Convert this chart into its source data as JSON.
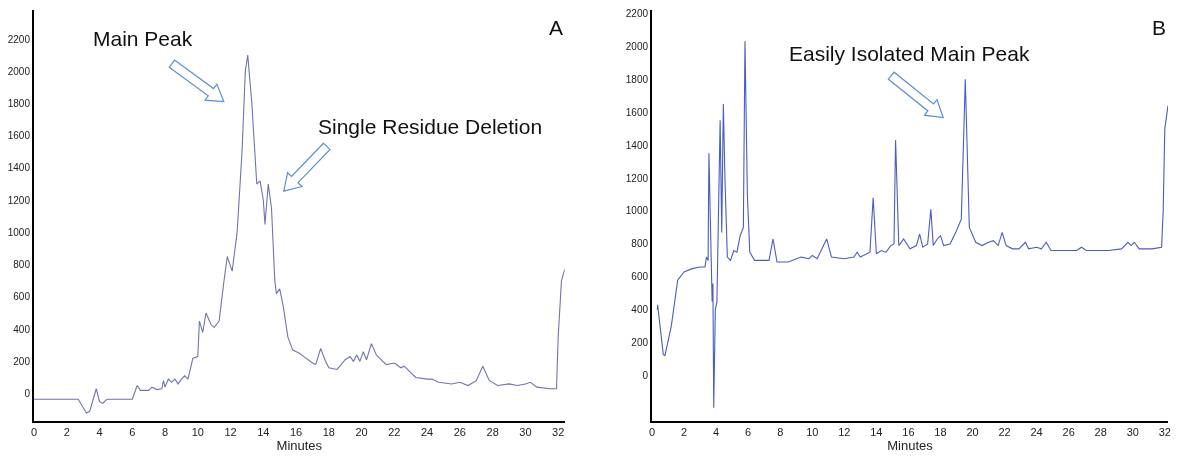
{
  "chart_data": [
    {
      "type": "line",
      "xlabel": "Minutes",
      "xlim": [
        0,
        32.4
      ],
      "ylim": [
        -170,
        2380
      ],
      "xticks": [
        0,
        2,
        4,
        6,
        8,
        10,
        12,
        14,
        16,
        18,
        20,
        22,
        24,
        26,
        28,
        30,
        32
      ],
      "yticks": [
        0,
        200,
        400,
        600,
        800,
        1000,
        1200,
        1400,
        1600,
        1800,
        2000,
        2200
      ],
      "grid": false,
      "marker": "none",
      "line_style": "solid",
      "annotations": [
        "A",
        "Main Peak",
        "Single Residue Deletion"
      ],
      "x": [
        0,
        2.7,
        3.2,
        3.4,
        3.8,
        4.0,
        4.2,
        4.4,
        4.5,
        6.0,
        6.3,
        6.5,
        7.0,
        7.2,
        7.5,
        7.8,
        7.9,
        8.0,
        8.2,
        8.4,
        8.6,
        8.8,
        9.0,
        9.2,
        9.4,
        9.7,
        10.0,
        10.1,
        10.3,
        10.5,
        10.8,
        11.0,
        11.3,
        11.6,
        11.8,
        12.1,
        12.4,
        12.7,
        12.9,
        13.05,
        13.3,
        13.6,
        13.8,
        14.0,
        14.1,
        14.3,
        14.5,
        14.7,
        14.8,
        15.0,
        15.2,
        15.5,
        15.8,
        16.2,
        16.6,
        17.0,
        17.2,
        17.5,
        17.8,
        18.0,
        18.5,
        19.0,
        19.3,
        19.5,
        19.7,
        19.9,
        20.1,
        20.3,
        20.6,
        20.9,
        21.5,
        22.0,
        22.4,
        22.6,
        23.3,
        24.0,
        24.3,
        24.7,
        25.5,
        26.0,
        26.5,
        27.0,
        27.4,
        27.8,
        28.3,
        29.0,
        29.5,
        30.0,
        30.3,
        30.7,
        31.5,
        31.9,
        32.0,
        32.2,
        32.4
      ],
      "series": [
        {
          "color": "#7074b0",
          "values": [
            -35,
            -35,
            -120,
            -110,
            30,
            -50,
            -60,
            -40,
            -35,
            -35,
            50,
            20,
            20,
            40,
            25,
            30,
            80,
            40,
            90,
            70,
            90,
            60,
            90,
            110,
            90,
            220,
            230,
            450,
            380,
            500,
            430,
            410,
            450,
            700,
            850,
            760,
            1000,
            1500,
            2000,
            2100,
            1800,
            1300,
            1320,
            1200,
            1050,
            1300,
            1150,
            700,
            620,
            650,
            550,
            350,
            270,
            250,
            220,
            190,
            180,
            280,
            200,
            160,
            150,
            210,
            230,
            200,
            240,
            200,
            260,
            210,
            310,
            240,
            180,
            190,
            160,
            170,
            100,
            90,
            90,
            70,
            60,
            70,
            50,
            80,
            170,
            80,
            50,
            60,
            50,
            60,
            70,
            40,
            30,
            30,
            350,
            700,
            770
          ]
        }
      ]
    },
    {
      "type": "line",
      "xlabel": "Minutes",
      "xlim": [
        0,
        32.2
      ],
      "ylim": [
        -275,
        2220
      ],
      "xticks": [
        0,
        2,
        4,
        6,
        8,
        10,
        12,
        14,
        16,
        18,
        20,
        22,
        24,
        26,
        28,
        30,
        32
      ],
      "yticks": [
        0,
        200,
        400,
        600,
        800,
        1000,
        1200,
        1400,
        1600,
        1800,
        2000,
        2200
      ],
      "grid": false,
      "marker": "none",
      "line_style": "solid",
      "annotations": [
        "B",
        "Easily Isolated Main Peak"
      ],
      "x": [
        0.33,
        0.35,
        0.7,
        0.8,
        1.2,
        1.6,
        2.0,
        2.5,
        3.0,
        3.3,
        3.4,
        3.5,
        3.55,
        3.65,
        3.75,
        3.8,
        3.85,
        3.95,
        4.05,
        4.15,
        4.25,
        4.35,
        4.45,
        4.55,
        4.7,
        4.9,
        5.1,
        5.3,
        5.5,
        5.7,
        5.8,
        5.95,
        6.1,
        6.4,
        6.9,
        7.3,
        7.55,
        7.8,
        8.5,
        9.3,
        9.8,
        10.0,
        10.3,
        10.9,
        11.2,
        12.0,
        12.6,
        12.8,
        13.0,
        13.6,
        13.8,
        14.0,
        14.3,
        14.6,
        14.9,
        15.1,
        15.2,
        15.4,
        15.7,
        16.1,
        16.5,
        16.7,
        16.9,
        17.2,
        17.4,
        17.55,
        17.8,
        18.0,
        18.2,
        18.6,
        19.0,
        19.3,
        19.55,
        19.8,
        20.2,
        20.6,
        21.0,
        21.3,
        21.6,
        21.85,
        22.1,
        22.5,
        22.9,
        23.3,
        23.5,
        24.0,
        24.3,
        24.6,
        24.9,
        25.5,
        26.5,
        26.8,
        27.1,
        28.5,
        29.3,
        29.7,
        29.9,
        30.1,
        30.4,
        31.2,
        31.8,
        31.9,
        32.0,
        32.2
      ],
      "series": [
        {
          "color": "#4c5cc0",
          "values": [
            400,
            430,
            130,
            120,
            300,
            580,
            630,
            650,
            660,
            660,
            720,
            700,
            1350,
            900,
            450,
            560,
            -195,
            400,
            450,
            1000,
            1550,
            870,
            1650,
            1200,
            720,
            700,
            760,
            750,
            850,
            900,
            2030,
            1100,
            750,
            700,
            700,
            700,
            830,
            690,
            690,
            720,
            710,
            730,
            710,
            830,
            720,
            710,
            720,
            750,
            720,
            750,
            1080,
            740,
            760,
            750,
            790,
            800,
            1430,
            790,
            830,
            770,
            790,
            860,
            780,
            800,
            1010,
            790,
            830,
            850,
            790,
            800,
            880,
            950,
            1800,
            900,
            810,
            790,
            810,
            820,
            790,
            870,
            790,
            770,
            770,
            810,
            770,
            780,
            770,
            810,
            760,
            760,
            760,
            780,
            760,
            760,
            770,
            810,
            790,
            810,
            770,
            770,
            780,
            1000,
            1500,
            1640
          ]
        }
      ]
    }
  ]
}
